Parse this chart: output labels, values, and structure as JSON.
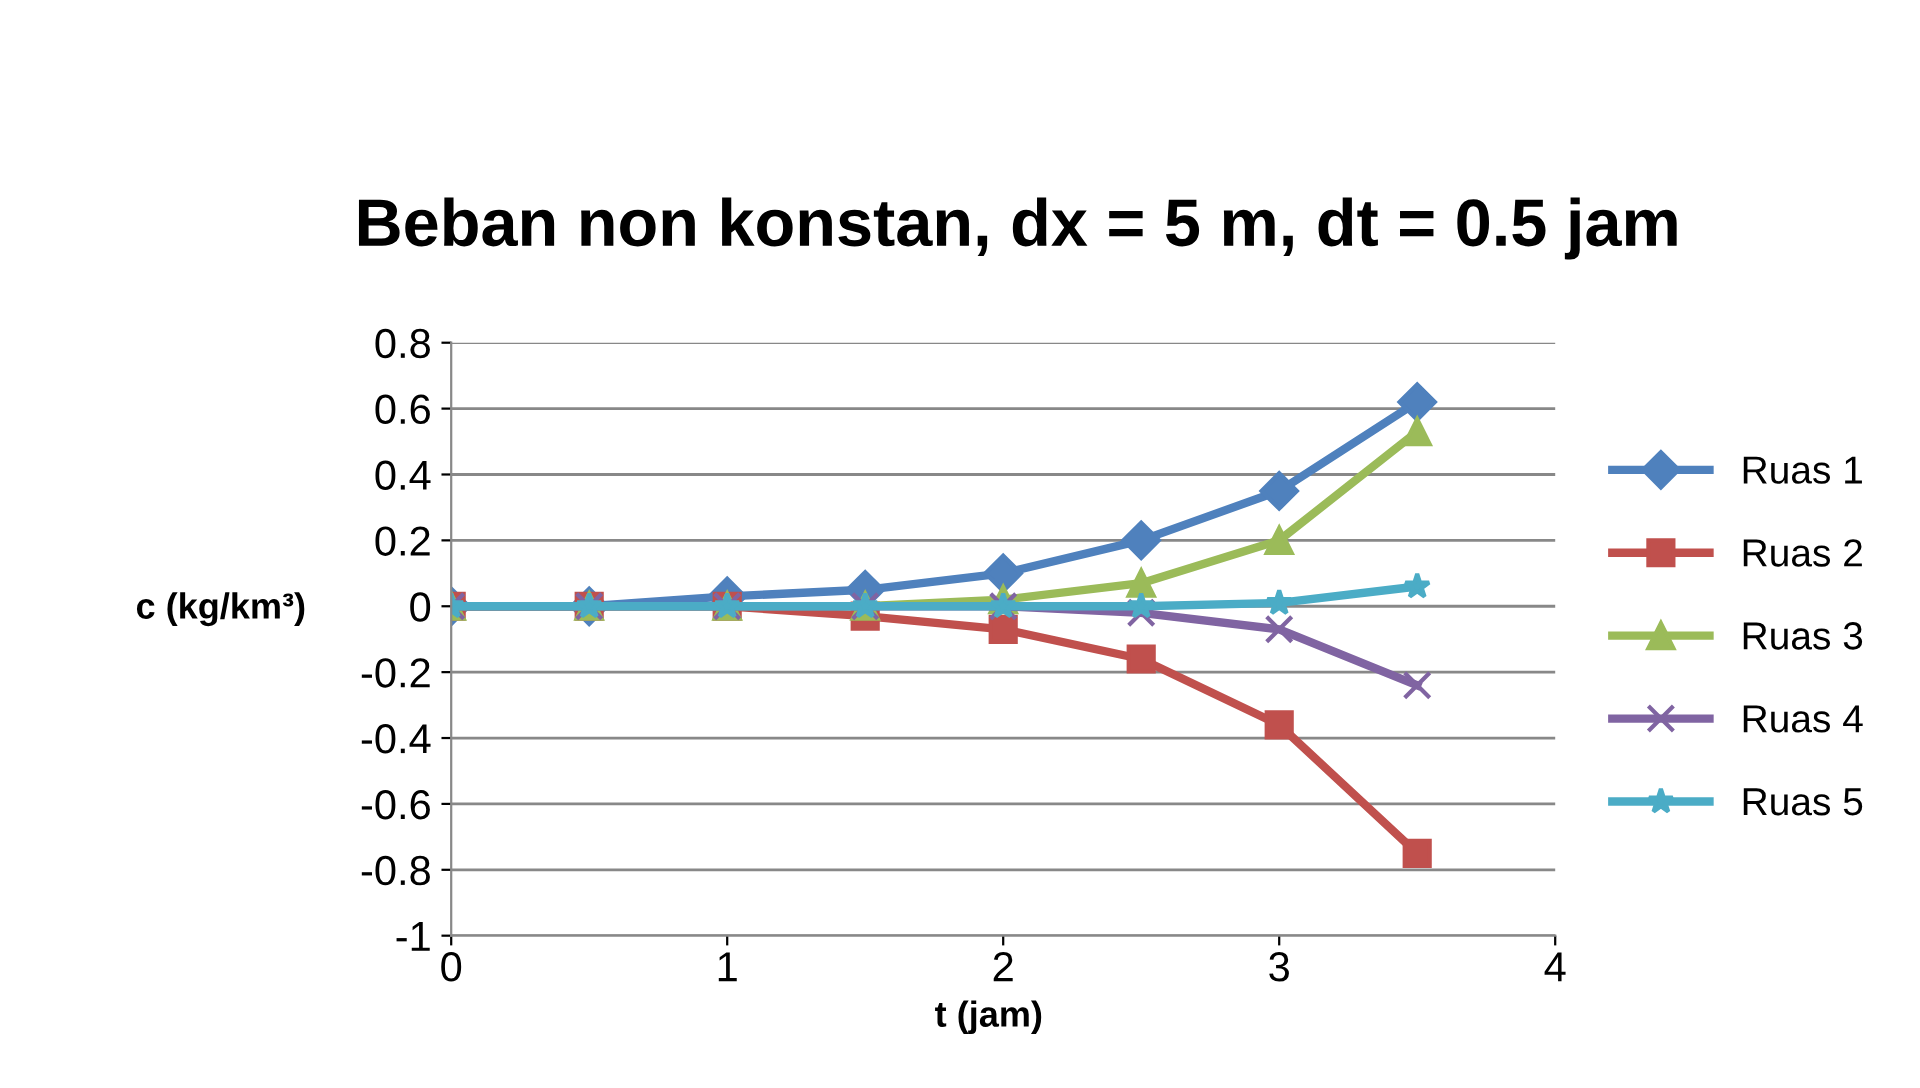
{
  "chart_data": {
    "type": "line",
    "title": "Beban non konstan, dx = 5 m, dt = 0.5 jam",
    "xlabel": "t (jam)",
    "ylabel": "c (kg/km³)",
    "x": [
      0,
      0.5,
      1,
      1.5,
      2,
      2.5,
      3,
      3.5
    ],
    "series": [
      {
        "name": "Ruas 1",
        "color": "#4f81bd",
        "marker": "diamond",
        "values": [
          0,
          0,
          0.03,
          0.05,
          0.1,
          0.2,
          0.35,
          0.62
        ]
      },
      {
        "name": "Ruas 2",
        "color": "#c0504d",
        "marker": "square",
        "values": [
          0,
          0,
          0,
          -0.03,
          -0.07,
          -0.16,
          -0.36,
          -0.75
        ]
      },
      {
        "name": "Ruas 3",
        "color": "#9bbb59",
        "marker": "triangle",
        "values": [
          0,
          0,
          0,
          0,
          0.02,
          0.07,
          0.2,
          0.53
        ]
      },
      {
        "name": "Ruas 4",
        "color": "#8064a2",
        "marker": "cross",
        "values": [
          0,
          0,
          0,
          0,
          0,
          -0.02,
          -0.07,
          -0.24
        ]
      },
      {
        "name": "Ruas 5",
        "color": "#4bacc6",
        "marker": "star",
        "values": [
          0,
          0,
          0,
          0,
          0,
          0,
          0.01,
          0.06
        ]
      }
    ],
    "xlim": [
      0,
      4
    ],
    "xticks": [
      0,
      1,
      2,
      3,
      4
    ],
    "ylim": [
      -1,
      0.8
    ],
    "yticks": [
      -1,
      -0.8,
      -0.6,
      -0.4,
      -0.2,
      0,
      0.2,
      0.4,
      0.6,
      0.8
    ],
    "grid": "y",
    "legend": "right",
    "line_style": "solid"
  }
}
